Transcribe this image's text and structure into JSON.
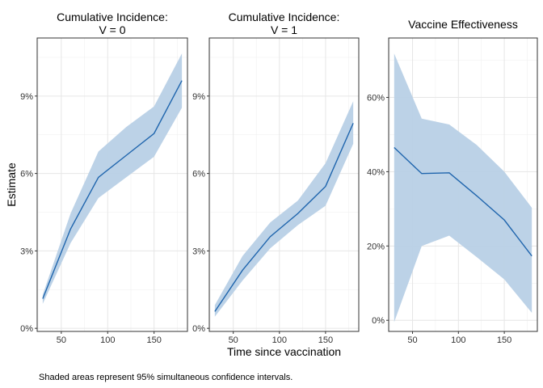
{
  "chart_data": {
    "type": "line",
    "xlabel": "Time since vaccination",
    "ylabel": "Estimate",
    "caption": "Shaded areas represent 95% simultaneous confidence intervals.",
    "line_color": "#1f65ad",
    "band_color": "#b8d0e6",
    "panels": [
      {
        "id": "v0",
        "title_lines": [
          "Cumulative Incidence:",
          "V = 0"
        ],
        "xlim": [
          24,
          186
        ],
        "ylim": [
          -0.0012,
          0.1125
        ],
        "xticks": [
          50,
          100,
          150
        ],
        "xtick_labels": [
          "50",
          "100",
          "150"
        ],
        "yticks": [
          0,
          0.03,
          0.06,
          0.09
        ],
        "ytick_labels": [
          "0%",
          "3%",
          "6%",
          "9%"
        ],
        "x": [
          30,
          60,
          90,
          120,
          150,
          180
        ],
        "estimate": [
          0.0115,
          0.0385,
          0.0585,
          0.067,
          0.0755,
          0.096
        ],
        "lower": [
          0.0095,
          0.033,
          0.0505,
          0.0585,
          0.0665,
          0.0855
        ],
        "upper": [
          0.013,
          0.0445,
          0.0685,
          0.078,
          0.086,
          0.1065
        ]
      },
      {
        "id": "v1",
        "title_lines": [
          "Cumulative Incidence:",
          "V = 1"
        ],
        "xlim": [
          24,
          186
        ],
        "ylim": [
          -0.0012,
          0.1125
        ],
        "xticks": [
          50,
          100,
          150
        ],
        "xtick_labels": [
          "50",
          "100",
          "150"
        ],
        "yticks": [
          0,
          0.03,
          0.06,
          0.09
        ],
        "ytick_labels": [
          "0%",
          "3%",
          "6%",
          "9%"
        ],
        "x": [
          30,
          60,
          90,
          120,
          150,
          180
        ],
        "estimate": [
          0.0065,
          0.0225,
          0.0355,
          0.0445,
          0.055,
          0.0795
        ],
        "lower": [
          0.0045,
          0.0185,
          0.031,
          0.04,
          0.0475,
          0.0715
        ],
        "upper": [
          0.009,
          0.028,
          0.041,
          0.0495,
          0.064,
          0.088
        ]
      },
      {
        "id": "ve",
        "title_lines": [
          "Vaccine Effectiveness"
        ],
        "xlim": [
          24,
          186
        ],
        "ylim": [
          -0.03,
          0.76
        ],
        "xticks": [
          50,
          100,
          150
        ],
        "xtick_labels": [
          "50",
          "100",
          "150"
        ],
        "yticks": [
          0,
          0.2,
          0.4,
          0.6
        ],
        "ytick_labels": [
          "0%",
          "20%",
          "40%",
          "60%"
        ],
        "x": [
          30,
          60,
          90,
          120,
          150,
          180
        ],
        "estimate": [
          0.465,
          0.395,
          0.397,
          0.335,
          0.27,
          0.173
        ],
        "lower": [
          -0.005,
          0.2,
          0.228,
          0.17,
          0.11,
          0.02
        ],
        "upper": [
          0.718,
          0.543,
          0.527,
          0.472,
          0.4,
          0.303
        ]
      }
    ]
  }
}
